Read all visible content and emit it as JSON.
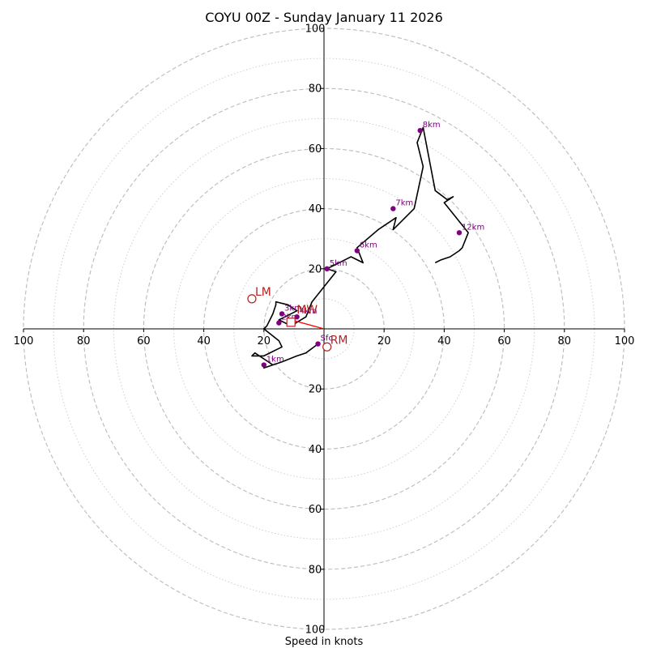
{
  "chart_data": {
    "type": "scatter",
    "title": "COYU 00Z - Sunday January 11 2026",
    "xlabel": "Speed in knots",
    "ylabel": "",
    "xlim": [
      -100,
      100
    ],
    "ylim": [
      -100,
      100
    ],
    "rings_major": [
      20,
      40,
      60,
      80,
      100
    ],
    "rings_minor": [
      10,
      30,
      50,
      70,
      90
    ],
    "x_tick_labels": [
      "100",
      "80",
      "60",
      "40",
      "20",
      "20",
      "40",
      "60",
      "80",
      "100"
    ],
    "x_tick_values": [
      -100,
      -80,
      -60,
      -40,
      -20,
      20,
      40,
      60,
      80,
      100
    ],
    "y_tick_labels": [
      "100",
      "80",
      "60",
      "40",
      "20",
      "20",
      "40",
      "60",
      "80",
      "100"
    ],
    "y_tick_values": [
      100,
      80,
      60,
      40,
      20,
      -20,
      -40,
      -60,
      -80,
      -100
    ],
    "hodograph": {
      "name": "wind profile",
      "x": [
        -2,
        -6,
        -9,
        -14,
        -20,
        -17,
        -23,
        -24,
        -20,
        -14,
        -15,
        -20,
        -19,
        -18,
        -17,
        -16,
        -16,
        -12,
        -9,
        -13,
        -15,
        -11,
        -6,
        -4,
        4,
        1,
        3,
        7,
        9,
        13,
        11,
        18,
        24,
        23,
        30,
        33,
        32,
        31,
        33,
        37,
        41,
        43,
        40,
        48,
        46,
        45,
        42,
        39,
        37
      ],
      "y": [
        -5,
        -8,
        -9,
        -11,
        -13,
        -12,
        -8,
        -9,
        -9,
        -6,
        -4,
        0,
        1,
        3,
        5,
        8,
        9,
        8,
        6,
        4,
        3,
        1,
        4,
        9,
        19,
        20,
        21,
        23,
        24,
        22,
        27,
        33,
        37,
        33,
        40,
        54,
        58,
        62,
        67,
        46,
        43,
        44,
        42,
        32,
        27,
        26,
        24,
        23,
        22
      ]
    },
    "height_markers": [
      {
        "label": "Sfc",
        "u": -2,
        "v": -5
      },
      {
        "label": "1km",
        "u": -20,
        "v": -12
      },
      {
        "label": "2km",
        "u": -15,
        "v": 2
      },
      {
        "label": "3km",
        "u": -14,
        "v": 5
      },
      {
        "label": "4km",
        "u": -9,
        "v": 4
      },
      {
        "label": "5km",
        "u": 1,
        "v": 20
      },
      {
        "label": "6km",
        "u": 11,
        "v": 26
      },
      {
        "label": "7km",
        "u": 23,
        "v": 40
      },
      {
        "label": "8km",
        "u": 32,
        "v": 66
      },
      {
        "label": "12km",
        "u": 45,
        "v": 32
      }
    ],
    "storm_motion": [
      {
        "label": "LM",
        "u": -24,
        "v": 10
      },
      {
        "label": "RM",
        "u": 1,
        "v": -6
      }
    ],
    "mean_wind": {
      "label": "MW",
      "u": -11,
      "v": 3
    },
    "shear_vector": {
      "label": "",
      "from": [
        0,
        0
      ],
      "to": [
        -11,
        3
      ]
    },
    "colors": {
      "line": "#000000",
      "height_marker": "#800080",
      "storm_motion": "#b22222",
      "shear_vector": "#ff0000",
      "ring_major": "#bbbbbb",
      "ring_minor": "#cfcfcf"
    }
  }
}
